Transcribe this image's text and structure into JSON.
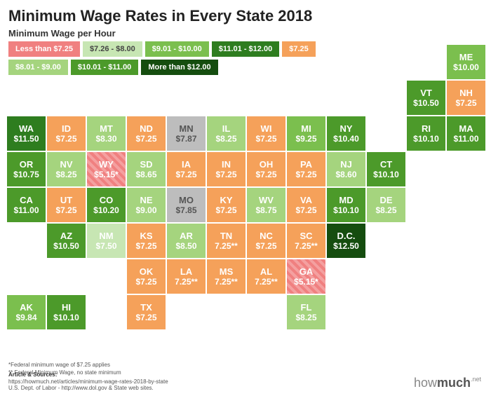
{
  "title": "Minimum Wage Rates in Every State 2018",
  "legend_title": "Minimum Wage per Hour",
  "cell": {
    "w": 57,
    "h": 51
  },
  "colors": {
    "lt725": "#f08080",
    "eq725": "#f5a15a",
    "726_800": "#c7e6b3",
    "801_900": "#a5d47e",
    "901_1000": "#7bbf4e",
    "1001_1100": "#4c9a2a",
    "1101_1200": "#2e7d1f",
    "gt1200": "#154d0f",
    "gray": "#bdbdbd",
    "gray_text": "#555555"
  },
  "legend": [
    {
      "label": "Less than $7.25",
      "color_key": "lt725"
    },
    {
      "label": "$7.26 - $8.00",
      "color_key": "726_800",
      "dark_text": true
    },
    {
      "label": "$9.01 - $10.00",
      "color_key": "901_1000"
    },
    {
      "label": "$11.01 - $12.00",
      "color_key": "1101_1200"
    },
    {
      "label": "$7.25",
      "color_key": "eq725"
    },
    {
      "label": "$8.01 - $9.00",
      "color_key": "801_900"
    },
    {
      "label": "$10.01 - $11.00",
      "color_key": "1001_1100"
    },
    {
      "label": "More than $12.00",
      "color_key": "gt1200"
    }
  ],
  "states": [
    {
      "code": "ME",
      "value": "$10.00",
      "row": 0,
      "col": 11,
      "color_key": "901_1000"
    },
    {
      "code": "VT",
      "value": "$10.50",
      "row": 1,
      "col": 10,
      "color_key": "1001_1100"
    },
    {
      "code": "NH",
      "value": "$7.25",
      "row": 1,
      "col": 11,
      "color_key": "eq725"
    },
    {
      "code": "WA",
      "value": "$11.50",
      "row": 2,
      "col": 0,
      "color_key": "1101_1200"
    },
    {
      "code": "ID",
      "value": "$7.25",
      "row": 2,
      "col": 1,
      "color_key": "eq725"
    },
    {
      "code": "MT",
      "value": "$8.30",
      "row": 2,
      "col": 2,
      "color_key": "801_900"
    },
    {
      "code": "ND",
      "value": "$7.25",
      "row": 2,
      "col": 3,
      "color_key": "eq725"
    },
    {
      "code": "MN",
      "value": "$7.87",
      "row": 2,
      "col": 4,
      "color_key": "gray",
      "dark_text": true
    },
    {
      "code": "IL",
      "value": "$8.25",
      "row": 2,
      "col": 5,
      "color_key": "801_900"
    },
    {
      "code": "WI",
      "value": "$7.25",
      "row": 2,
      "col": 6,
      "color_key": "eq725"
    },
    {
      "code": "MI",
      "value": "$9.25",
      "row": 2,
      "col": 7,
      "color_key": "901_1000"
    },
    {
      "code": "NY",
      "value": "$10.40",
      "row": 2,
      "col": 8,
      "color_key": "1001_1100"
    },
    {
      "code": "RI",
      "value": "$10.10",
      "row": 2,
      "col": 10,
      "color_key": "1001_1100"
    },
    {
      "code": "MA",
      "value": "$11.00",
      "row": 2,
      "col": 11,
      "color_key": "1001_1100"
    },
    {
      "code": "OR",
      "value": "$10.75",
      "row": 3,
      "col": 0,
      "color_key": "1001_1100"
    },
    {
      "code": "NV",
      "value": "$8.25",
      "row": 3,
      "col": 1,
      "color_key": "801_900"
    },
    {
      "code": "WY",
      "value": "$5.15*",
      "row": 3,
      "col": 2,
      "color_key": "lt725",
      "hatch": true
    },
    {
      "code": "SD",
      "value": "$8.65",
      "row": 3,
      "col": 3,
      "color_key": "801_900"
    },
    {
      "code": "IA",
      "value": "$7.25",
      "row": 3,
      "col": 4,
      "color_key": "eq725"
    },
    {
      "code": "IN",
      "value": "$7.25",
      "row": 3,
      "col": 5,
      "color_key": "eq725"
    },
    {
      "code": "OH",
      "value": "$7.25",
      "row": 3,
      "col": 6,
      "color_key": "eq725"
    },
    {
      "code": "PA",
      "value": "$7.25",
      "row": 3,
      "col": 7,
      "color_key": "eq725"
    },
    {
      "code": "NJ",
      "value": "$8.60",
      "row": 3,
      "col": 8,
      "color_key": "801_900"
    },
    {
      "code": "CT",
      "value": "$10.10",
      "row": 3,
      "col": 9,
      "color_key": "1001_1100"
    },
    {
      "code": "CA",
      "value": "$11.00",
      "row": 4,
      "col": 0,
      "color_key": "1001_1100"
    },
    {
      "code": "UT",
      "value": "$7.25",
      "row": 4,
      "col": 1,
      "color_key": "eq725"
    },
    {
      "code": "CO",
      "value": "$10.20",
      "row": 4,
      "col": 2,
      "color_key": "1001_1100"
    },
    {
      "code": "NE",
      "value": "$9.00",
      "row": 4,
      "col": 3,
      "color_key": "801_900"
    },
    {
      "code": "MO",
      "value": "$7.85",
      "row": 4,
      "col": 4,
      "color_key": "gray",
      "dark_text": true
    },
    {
      "code": "KY",
      "value": "$7.25",
      "row": 4,
      "col": 5,
      "color_key": "eq725"
    },
    {
      "code": "WV",
      "value": "$8.75",
      "row": 4,
      "col": 6,
      "color_key": "801_900"
    },
    {
      "code": "VA",
      "value": "$7.25",
      "row": 4,
      "col": 7,
      "color_key": "eq725"
    },
    {
      "code": "MD",
      "value": "$10.10",
      "row": 4,
      "col": 8,
      "color_key": "1001_1100"
    },
    {
      "code": "DE",
      "value": "$8.25",
      "row": 4,
      "col": 9,
      "color_key": "801_900"
    },
    {
      "code": "AZ",
      "value": "$10.50",
      "row": 5,
      "col": 1,
      "color_key": "1001_1100"
    },
    {
      "code": "NM",
      "value": "$7.50",
      "row": 5,
      "col": 2,
      "color_key": "726_800"
    },
    {
      "code": "KS",
      "value": "$7.25",
      "row": 5,
      "col": 3,
      "color_key": "eq725"
    },
    {
      "code": "AR",
      "value": "$8.50",
      "row": 5,
      "col": 4,
      "color_key": "801_900"
    },
    {
      "code": "TN",
      "value": "7.25**",
      "row": 5,
      "col": 5,
      "color_key": "eq725"
    },
    {
      "code": "NC",
      "value": "$7.25",
      "row": 5,
      "col": 6,
      "color_key": "eq725"
    },
    {
      "code": "SC",
      "value": "7.25**",
      "row": 5,
      "col": 7,
      "color_key": "eq725"
    },
    {
      "code": "D.C.",
      "value": "$12.50",
      "row": 5,
      "col": 8,
      "color_key": "gt1200"
    },
    {
      "code": "OK",
      "value": "$7.25",
      "row": 6,
      "col": 3,
      "color_key": "eq725"
    },
    {
      "code": "LA",
      "value": "7.25**",
      "row": 6,
      "col": 4,
      "color_key": "eq725"
    },
    {
      "code": "MS",
      "value": "7.25**",
      "row": 6,
      "col": 5,
      "color_key": "eq725"
    },
    {
      "code": "AL",
      "value": "7.25**",
      "row": 6,
      "col": 6,
      "color_key": "eq725"
    },
    {
      "code": "GA",
      "value": "$5.15*",
      "row": 6,
      "col": 7,
      "color_key": "lt725",
      "hatch": true
    },
    {
      "code": "AK",
      "value": "$9.84",
      "row": 7,
      "col": 0,
      "color_key": "901_1000"
    },
    {
      "code": "HI",
      "value": "$10.10",
      "row": 7,
      "col": 1,
      "color_key": "1001_1100"
    },
    {
      "code": "TX",
      "value": "$7.25",
      "row": 7,
      "col": 3,
      "color_key": "eq725"
    },
    {
      "code": "FL",
      "value": "$8.25",
      "row": 7,
      "col": 7,
      "color_key": "801_900"
    }
  ],
  "footnotes": [
    "*Federal minimum wage of $7.25 applies",
    "** Federal Minimum Wage, no state minimum"
  ],
  "sources": {
    "heading": "Article & Sources:",
    "lines": [
      "https://howmuch.net/articles/minimum-wage-rates-2018-by-state",
      "U.S. Dept. of Labor - http://www.dol.gov & State web sites."
    ]
  },
  "logo": {
    "part1": "how",
    "part2": "much",
    "suffix": ".net"
  }
}
